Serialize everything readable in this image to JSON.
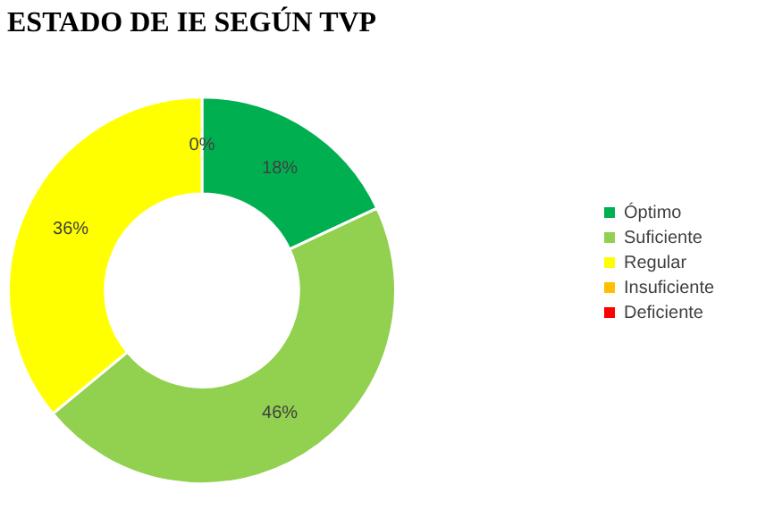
{
  "chart_data": {
    "type": "donut",
    "title": "ESTADO DE IE SEGÚN TVP",
    "categories": [
      "Óptimo",
      "Suficiente",
      "Regular",
      "Insuficiente",
      "Deficiente"
    ],
    "values": [
      18,
      46,
      36,
      0,
      0
    ],
    "colors": [
      "#00b050",
      "#92d050",
      "#ffff00",
      "#ffc000",
      "#ff0000"
    ],
    "value_labels": [
      "18%",
      "46%",
      "36%",
      "0%",
      null
    ],
    "legend": "right"
  }
}
